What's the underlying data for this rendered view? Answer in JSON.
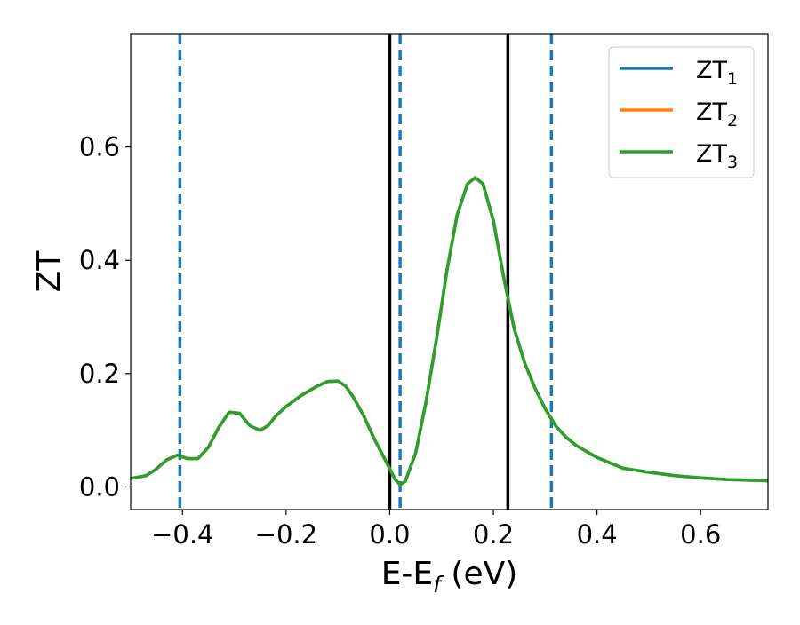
{
  "chart_data": {
    "type": "line",
    "title": "",
    "xlabel": "E-E",
    "xlabel_sub": "f",
    "xlabel_unit": " (eV)",
    "ylabel": "ZT",
    "xlim": [
      -0.5,
      0.73
    ],
    "ylim": [
      -0.04,
      0.8
    ],
    "xticks": [
      -0.4,
      -0.2,
      0.0,
      0.2,
      0.4,
      0.6
    ],
    "xtick_labels": [
      "−0.4",
      "−0.2",
      "0.0",
      "0.2",
      "0.4",
      "0.6"
    ],
    "yticks": [
      0.0,
      0.2,
      0.4,
      0.6
    ],
    "ytick_labels": [
      "0.0",
      "0.2",
      "0.4",
      "0.6"
    ],
    "grid": false,
    "legend_position": "top-right",
    "series": [
      {
        "name": "ZT",
        "name_sub": "1",
        "color": "#1f77b4",
        "x": [
          -0.5,
          -0.47,
          -0.45,
          -0.43,
          -0.41,
          -0.39,
          -0.37,
          -0.35,
          -0.33,
          -0.31,
          -0.29,
          -0.27,
          -0.25,
          -0.235,
          -0.22,
          -0.2,
          -0.17,
          -0.14,
          -0.12,
          -0.1,
          -0.085,
          -0.07,
          -0.05,
          -0.03,
          -0.01,
          0.0,
          0.01,
          0.02,
          0.03,
          0.05,
          0.07,
          0.09,
          0.11,
          0.13,
          0.15,
          0.165,
          0.18,
          0.2,
          0.22,
          0.24,
          0.26,
          0.28,
          0.3,
          0.32,
          0.34,
          0.36,
          0.4,
          0.45,
          0.5,
          0.55,
          0.6,
          0.65,
          0.73
        ],
        "y": [
          0.015,
          0.02,
          0.032,
          0.048,
          0.056,
          0.05,
          0.05,
          0.07,
          0.105,
          0.132,
          0.13,
          0.108,
          0.1,
          0.108,
          0.125,
          0.142,
          0.162,
          0.178,
          0.186,
          0.187,
          0.178,
          0.158,
          0.125,
          0.085,
          0.05,
          0.032,
          0.014,
          0.004,
          0.01,
          0.06,
          0.15,
          0.26,
          0.38,
          0.48,
          0.535,
          0.546,
          0.535,
          0.47,
          0.37,
          0.28,
          0.22,
          0.175,
          0.138,
          0.108,
          0.088,
          0.073,
          0.052,
          0.033,
          0.026,
          0.02,
          0.016,
          0.013,
          0.011
        ]
      },
      {
        "name": "ZT",
        "name_sub": "2",
        "color": "#ff7f0e",
        "x": [
          -0.5,
          -0.47,
          -0.45,
          -0.43,
          -0.41,
          -0.39,
          -0.37,
          -0.35,
          -0.33,
          -0.31,
          -0.29,
          -0.27,
          -0.25,
          -0.235,
          -0.22,
          -0.2,
          -0.17,
          -0.14,
          -0.12,
          -0.1,
          -0.085,
          -0.07,
          -0.05,
          -0.03,
          -0.01,
          0.0,
          0.01,
          0.02,
          0.03,
          0.05,
          0.07,
          0.09,
          0.11,
          0.13,
          0.15,
          0.165,
          0.18,
          0.2,
          0.22,
          0.24,
          0.26,
          0.28,
          0.3,
          0.32,
          0.34,
          0.36,
          0.4,
          0.45,
          0.5,
          0.55,
          0.6,
          0.65,
          0.73
        ],
        "y": [
          0.015,
          0.02,
          0.032,
          0.048,
          0.056,
          0.05,
          0.05,
          0.07,
          0.105,
          0.132,
          0.13,
          0.108,
          0.1,
          0.108,
          0.125,
          0.142,
          0.162,
          0.178,
          0.186,
          0.187,
          0.178,
          0.158,
          0.125,
          0.085,
          0.05,
          0.032,
          0.014,
          0.004,
          0.01,
          0.06,
          0.15,
          0.26,
          0.38,
          0.48,
          0.535,
          0.546,
          0.535,
          0.47,
          0.37,
          0.28,
          0.22,
          0.175,
          0.138,
          0.108,
          0.088,
          0.073,
          0.052,
          0.033,
          0.026,
          0.02,
          0.016,
          0.013,
          0.011
        ]
      },
      {
        "name": "ZT",
        "name_sub": "3",
        "color": "#2ca02c",
        "x": [
          -0.5,
          -0.47,
          -0.45,
          -0.43,
          -0.41,
          -0.39,
          -0.37,
          -0.35,
          -0.33,
          -0.31,
          -0.29,
          -0.27,
          -0.25,
          -0.235,
          -0.22,
          -0.2,
          -0.17,
          -0.14,
          -0.12,
          -0.1,
          -0.085,
          -0.07,
          -0.05,
          -0.03,
          -0.01,
          0.0,
          0.01,
          0.02,
          0.03,
          0.05,
          0.07,
          0.09,
          0.11,
          0.13,
          0.15,
          0.165,
          0.18,
          0.2,
          0.22,
          0.24,
          0.26,
          0.28,
          0.3,
          0.32,
          0.34,
          0.36,
          0.4,
          0.45,
          0.5,
          0.55,
          0.6,
          0.65,
          0.73
        ],
        "y": [
          0.015,
          0.02,
          0.032,
          0.048,
          0.056,
          0.05,
          0.05,
          0.07,
          0.105,
          0.132,
          0.13,
          0.108,
          0.1,
          0.108,
          0.125,
          0.142,
          0.162,
          0.178,
          0.186,
          0.187,
          0.178,
          0.158,
          0.125,
          0.085,
          0.05,
          0.032,
          0.014,
          0.004,
          0.01,
          0.06,
          0.15,
          0.26,
          0.38,
          0.48,
          0.535,
          0.546,
          0.535,
          0.47,
          0.37,
          0.28,
          0.22,
          0.175,
          0.138,
          0.108,
          0.088,
          0.073,
          0.052,
          0.033,
          0.026,
          0.02,
          0.016,
          0.013,
          0.011
        ]
      }
    ],
    "vertical_lines": [
      {
        "x": -0.405,
        "style": "dashed",
        "color": "#1f77b4"
      },
      {
        "x": 0.02,
        "style": "dashed",
        "color": "#1f77b4"
      },
      {
        "x": 0.312,
        "style": "dashed",
        "color": "#1f77b4"
      },
      {
        "x": 0.0,
        "style": "solid",
        "color": "#000000"
      },
      {
        "x": 0.228,
        "style": "solid",
        "color": "#000000"
      }
    ]
  }
}
